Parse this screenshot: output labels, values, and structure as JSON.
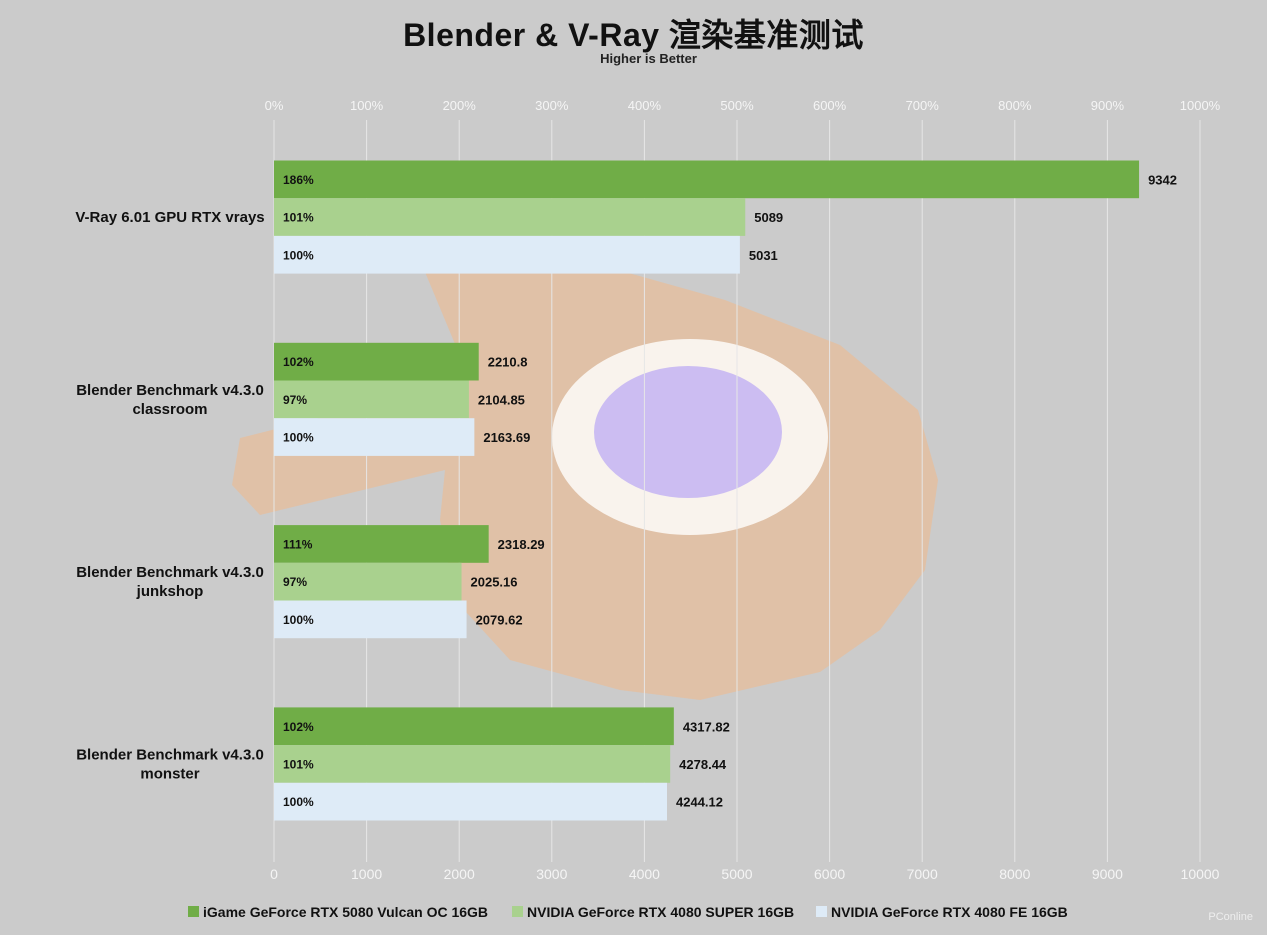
{
  "chart_data": {
    "type": "bar",
    "orientation": "horizontal",
    "title": "Blender & V-Ray 渲染基准测试",
    "subtitle": "Higher is Better",
    "categories": [
      "V-Ray 6.01 GPU RTX vrays",
      "Blender Benchmark v4.3.0 classroom",
      "Blender Benchmark v4.3.0 junkshop",
      "Blender Benchmark v4.3.0 monster"
    ],
    "series": [
      {
        "name": "iGame GeForce RTX 5080 Vulcan OC 16GB",
        "color": "#70ad47",
        "values": [
          9342,
          2210.8,
          2318.29,
          4317.82
        ],
        "value_labels": [
          "9342",
          "2210.8",
          "2318.29",
          "4317.82"
        ],
        "percent_labels": [
          "186%",
          "102%",
          "111%",
          "102%"
        ]
      },
      {
        "name": "NVIDIA GeForce RTX 4080 SUPER 16GB",
        "color": "#a9d18e",
        "values": [
          5089,
          2104.85,
          2025.16,
          4278.44
        ],
        "value_labels": [
          "5089",
          "2104.85",
          "2025.16",
          "4278.44"
        ],
        "percent_labels": [
          "101%",
          "97%",
          "97%",
          "101%"
        ]
      },
      {
        "name": "NVIDIA GeForce RTX 4080 FE 16GB",
        "color": "#deebf7",
        "values": [
          5031,
          2163.69,
          2079.62,
          4244.12
        ],
        "value_labels": [
          "5031",
          "2163.69",
          "2079.62",
          "4244.12"
        ],
        "percent_labels": [
          "100%",
          "100%",
          "100%",
          "100%"
        ]
      }
    ],
    "xlim": [
      0,
      10000
    ],
    "x_ticks": [
      0,
      1000,
      2000,
      3000,
      4000,
      5000,
      6000,
      7000,
      8000,
      9000,
      10000
    ],
    "x_tick_labels": [
      "0",
      "1000",
      "2000",
      "3000",
      "4000",
      "5000",
      "6000",
      "7000",
      "8000",
      "9000",
      "10000"
    ],
    "top_axis_ticks": [
      0,
      100,
      200,
      300,
      400,
      500,
      600,
      700,
      800,
      900,
      1000
    ],
    "top_axis_labels": [
      "0%",
      "100%",
      "200%",
      "300%",
      "400%",
      "500%",
      "600%",
      "700%",
      "800%",
      "900%",
      "1000%"
    ],
    "grid": true,
    "legend_position": "bottom"
  },
  "colors": {
    "background": "#cbcbcb",
    "grid": "#e6e6e6",
    "text": "#111111"
  },
  "watermark": "PConline"
}
